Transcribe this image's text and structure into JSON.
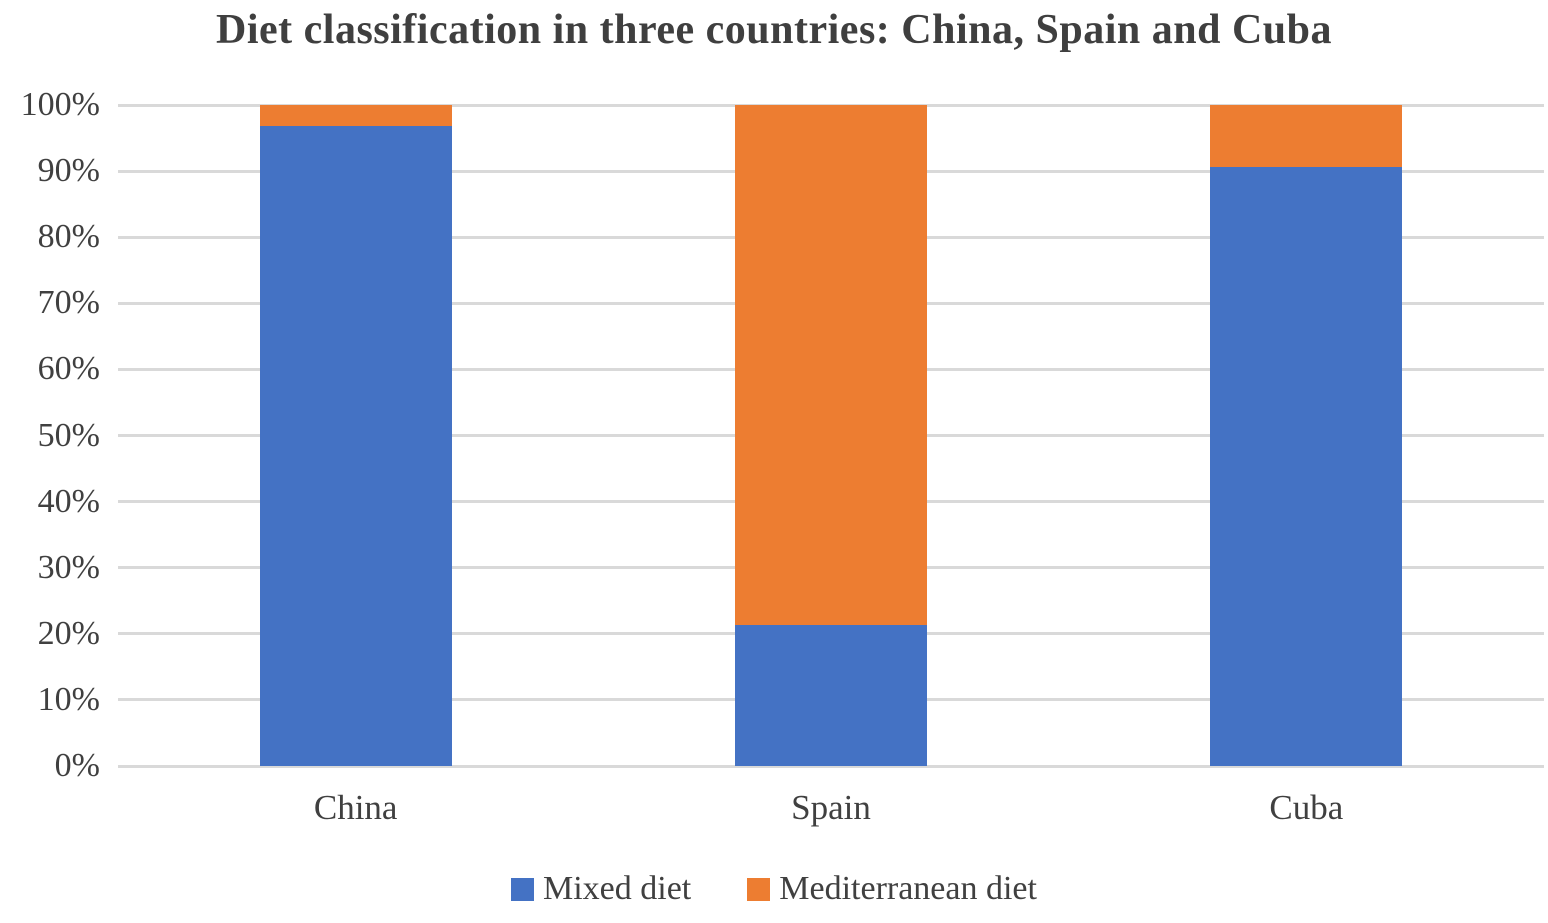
{
  "chart_data": {
    "type": "bar",
    "variant": "stacked-percent",
    "title": "Diet classification in three countries: China, Spain and Cuba",
    "categories": [
      "China",
      "Spain",
      "Cuba"
    ],
    "series": [
      {
        "name": "Mixed diet",
        "color": "#4472C4",
        "values": [
          96.8,
          21.3,
          90.6
        ]
      },
      {
        "name": "Mediterranean diet",
        "color": "#ED7D31",
        "values": [
          3.2,
          78.7,
          9.4
        ]
      }
    ],
    "y_ticks": [
      "0%",
      "10%",
      "20%",
      "30%",
      "40%",
      "50%",
      "60%",
      "70%",
      "80%",
      "90%",
      "100%"
    ],
    "ylim": [
      0,
      100
    ],
    "xlabel": "",
    "ylabel": "",
    "grid": true,
    "legend_position": "bottom"
  },
  "colors": {
    "gridline": "#D9D9D9",
    "axis_text": "#404040",
    "title_text": "#3F3F3F",
    "background": "#FFFFFF"
  }
}
